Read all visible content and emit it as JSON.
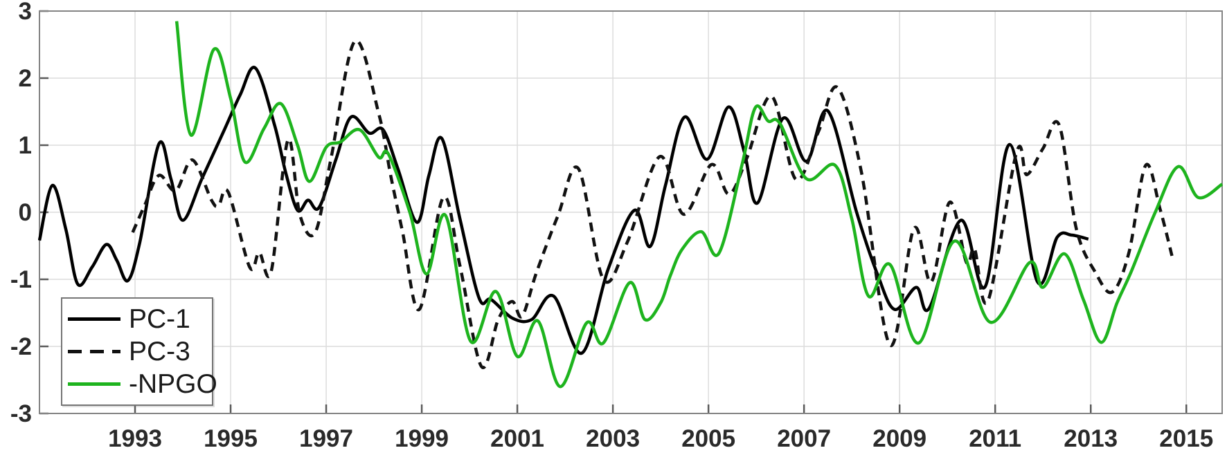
{
  "chart_data": {
    "type": "line",
    "title": "",
    "xlabel": "",
    "ylabel": "",
    "xlim": [
      1991.0,
      2015.75
    ],
    "ylim": [
      -3,
      3
    ],
    "x_ticks": [
      1993,
      1995,
      1997,
      1999,
      2001,
      2003,
      2005,
      2007,
      2009,
      2011,
      2013,
      2015
    ],
    "y_ticks": [
      -3,
      -2,
      -1,
      0,
      1,
      2,
      3
    ],
    "grid": true,
    "legend_position": "bottom-left",
    "colors": {
      "axis": "#848484",
      "grid": "#dcdcdc",
      "tick": "#5a5a5a",
      "tick_label": "#2a2a2a",
      "pc1": "#000000",
      "pc3": "#111111",
      "npgo": "#1eb41e"
    },
    "series": [
      {
        "name": "PC-1",
        "style": "solid",
        "color": "#000000",
        "points": [
          [
            1991.0,
            -0.42
          ],
          [
            1991.27,
            0.4
          ],
          [
            1991.55,
            -0.25
          ],
          [
            1991.8,
            -1.07
          ],
          [
            1992.1,
            -0.82
          ],
          [
            1992.4,
            -0.48
          ],
          [
            1992.62,
            -0.72
          ],
          [
            1992.85,
            -1.02
          ],
          [
            1993.1,
            -0.45
          ],
          [
            1993.5,
            1.02
          ],
          [
            1993.75,
            0.5
          ],
          [
            1994.0,
            -0.12
          ],
          [
            1994.4,
            0.5
          ],
          [
            1994.85,
            1.2
          ],
          [
            1995.2,
            1.75
          ],
          [
            1995.52,
            2.15
          ],
          [
            1995.92,
            1.3
          ],
          [
            1996.15,
            0.6
          ],
          [
            1996.4,
            0.03
          ],
          [
            1996.62,
            0.18
          ],
          [
            1996.85,
            0.07
          ],
          [
            1997.2,
            0.78
          ],
          [
            1997.52,
            1.42
          ],
          [
            1997.9,
            1.18
          ],
          [
            1998.19,
            1.23
          ],
          [
            1998.5,
            0.65
          ],
          [
            1998.9,
            -0.15
          ],
          [
            1999.15,
            0.55
          ],
          [
            1999.42,
            1.1
          ],
          [
            1999.8,
            -0.1
          ],
          [
            2000.2,
            -1.28
          ],
          [
            2000.45,
            -1.3
          ],
          [
            2000.9,
            -1.58
          ],
          [
            2001.3,
            -1.6
          ],
          [
            2001.76,
            -1.25
          ],
          [
            2002.35,
            -2.1
          ],
          [
            2002.9,
            -0.85
          ],
          [
            2003.45,
            0.03
          ],
          [
            2003.78,
            -0.51
          ],
          [
            2004.1,
            0.4
          ],
          [
            2004.5,
            1.42
          ],
          [
            2004.97,
            0.79
          ],
          [
            2005.42,
            1.57
          ],
          [
            2005.75,
            0.9
          ],
          [
            2006.03,
            0.14
          ],
          [
            2006.56,
            1.4
          ],
          [
            2007.05,
            0.76
          ],
          [
            2007.5,
            1.51
          ],
          [
            2008.1,
            0.0
          ],
          [
            2008.55,
            -0.95
          ],
          [
            2008.9,
            -1.45
          ],
          [
            2009.35,
            -1.12
          ],
          [
            2009.62,
            -1.43
          ],
          [
            2010.28,
            -0.12
          ],
          [
            2010.79,
            -1.11
          ],
          [
            2011.3,
            1.01
          ],
          [
            2011.88,
            -1.03
          ],
          [
            2012.3,
            -0.37
          ],
          [
            2012.6,
            -0.34
          ],
          [
            2012.95,
            -0.4
          ]
        ]
      },
      {
        "name": "PC-3",
        "style": "dashed",
        "color": "#111111",
        "points": [
          [
            1992.95,
            -0.3
          ],
          [
            1993.2,
            0.1
          ],
          [
            1993.5,
            0.55
          ],
          [
            1993.85,
            0.32
          ],
          [
            1994.2,
            0.78
          ],
          [
            1994.6,
            0.18
          ],
          [
            1994.75,
            0.1
          ],
          [
            1994.95,
            0.3
          ],
          [
            1995.4,
            -0.82
          ],
          [
            1995.6,
            -0.6
          ],
          [
            1995.85,
            -0.88
          ],
          [
            1996.2,
            1.08
          ],
          [
            1996.45,
            -0.04
          ],
          [
            1996.77,
            -0.3
          ],
          [
            1997.1,
            0.8
          ],
          [
            1997.6,
            2.55
          ],
          [
            1998.1,
            1.47
          ],
          [
            1998.35,
            0.55
          ],
          [
            1998.6,
            -0.3
          ],
          [
            1998.95,
            -1.45
          ],
          [
            1999.45,
            0.22
          ],
          [
            1999.8,
            -0.8
          ],
          [
            2000.25,
            -2.3
          ],
          [
            2000.6,
            -1.6
          ],
          [
            2000.89,
            -1.33
          ],
          [
            2001.1,
            -1.55
          ],
          [
            2001.4,
            -0.9
          ],
          [
            2001.85,
            -0.05
          ],
          [
            2002.28,
            0.65
          ],
          [
            2002.8,
            -1.0
          ],
          [
            2003.3,
            -0.45
          ],
          [
            2003.98,
            0.83
          ],
          [
            2004.48,
            -0.03
          ],
          [
            2005.06,
            0.71
          ],
          [
            2005.43,
            0.27
          ],
          [
            2005.8,
            0.8
          ],
          [
            2006.32,
            1.73
          ],
          [
            2006.83,
            0.49
          ],
          [
            2007.3,
            1.2
          ],
          [
            2007.7,
            1.86
          ],
          [
            2008.2,
            0.6
          ],
          [
            2008.8,
            -1.98
          ],
          [
            2009.3,
            -0.24
          ],
          [
            2009.66,
            -1.04
          ],
          [
            2010.05,
            0.15
          ],
          [
            2010.4,
            -0.75
          ],
          [
            2010.57,
            -0.55
          ],
          [
            2010.85,
            -1.32
          ],
          [
            2011.45,
            0.9
          ],
          [
            2011.66,
            0.56
          ],
          [
            2012.0,
            0.95
          ],
          [
            2012.34,
            1.3
          ],
          [
            2012.7,
            -0.25
          ],
          [
            2013.1,
            -0.9
          ],
          [
            2013.45,
            -1.19
          ],
          [
            2013.8,
            -0.6
          ],
          [
            2014.15,
            0.7
          ],
          [
            2014.45,
            0.05
          ],
          [
            2014.7,
            -0.65
          ]
        ]
      },
      {
        "name": "-NPGO",
        "style": "solid",
        "color": "#1eb41e",
        "points": [
          [
            1993.87,
            2.85
          ],
          [
            1994.17,
            1.15
          ],
          [
            1994.65,
            2.43
          ],
          [
            1995.0,
            1.7
          ],
          [
            1995.3,
            0.75
          ],
          [
            1995.7,
            1.25
          ],
          [
            1996.05,
            1.62
          ],
          [
            1996.4,
            1.0
          ],
          [
            1996.65,
            0.46
          ],
          [
            1997.0,
            0.97
          ],
          [
            1997.3,
            1.05
          ],
          [
            1997.7,
            1.23
          ],
          [
            1998.1,
            0.82
          ],
          [
            1998.3,
            0.87
          ],
          [
            1998.75,
            0.0
          ],
          [
            1999.1,
            -0.92
          ],
          [
            1999.5,
            -0.05
          ],
          [
            2000.02,
            -1.92
          ],
          [
            2000.55,
            -1.18
          ],
          [
            2001.0,
            -2.15
          ],
          [
            2001.43,
            -1.62
          ],
          [
            2001.9,
            -2.6
          ],
          [
            2002.45,
            -1.65
          ],
          [
            2002.8,
            -1.95
          ],
          [
            2003.35,
            -1.05
          ],
          [
            2003.67,
            -1.6
          ],
          [
            2004.0,
            -1.35
          ],
          [
            2004.2,
            -0.95
          ],
          [
            2004.45,
            -0.55
          ],
          [
            2004.85,
            -0.29
          ],
          [
            2005.22,
            -0.61
          ],
          [
            2005.7,
            0.7
          ],
          [
            2005.98,
            1.56
          ],
          [
            2006.25,
            1.36
          ],
          [
            2006.5,
            1.32
          ],
          [
            2007.05,
            0.5
          ],
          [
            2007.65,
            0.7
          ],
          [
            2008.0,
            -0.1
          ],
          [
            2008.35,
            -1.25
          ],
          [
            2008.8,
            -0.78
          ],
          [
            2009.4,
            -1.95
          ],
          [
            2010.15,
            -0.43
          ],
          [
            2010.9,
            -1.64
          ],
          [
            2011.72,
            -0.75
          ],
          [
            2012.0,
            -1.12
          ],
          [
            2012.45,
            -0.62
          ],
          [
            2012.85,
            -1.31
          ],
          [
            2013.22,
            -1.94
          ],
          [
            2013.55,
            -1.35
          ],
          [
            2013.85,
            -0.88
          ],
          [
            2014.35,
            0.0
          ],
          [
            2014.83,
            0.68
          ],
          [
            2015.25,
            0.22
          ],
          [
            2015.75,
            0.42
          ]
        ]
      }
    ]
  }
}
